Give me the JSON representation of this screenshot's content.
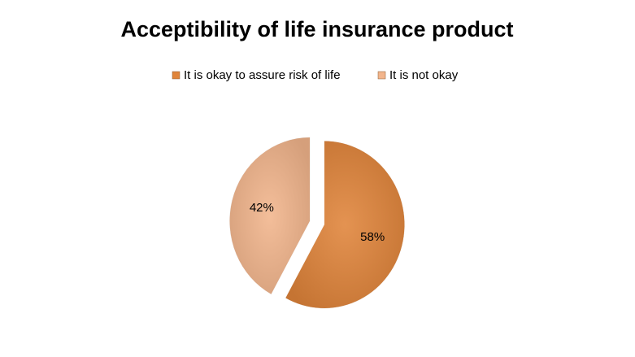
{
  "chart_data": {
    "type": "pie",
    "title": "Acceptibility of life insurance product",
    "categories": [
      "It is okay to assure risk of life",
      "It is not okay"
    ],
    "values": [
      58,
      42
    ],
    "value_labels": [
      "58%",
      "42%"
    ],
    "colors": [
      "#e0843a",
      "#f2b58c"
    ],
    "legend": "top"
  }
}
